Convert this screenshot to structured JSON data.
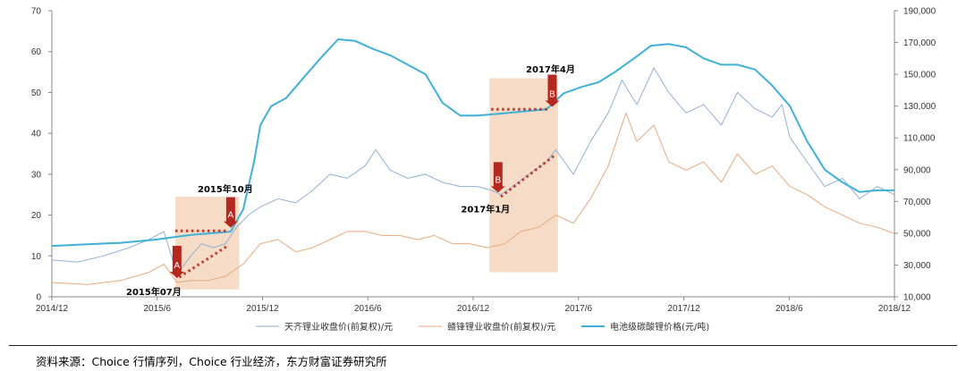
{
  "chart_data": {
    "type": "line",
    "title": "",
    "x_ticks": [
      "2014/12",
      "2015/6",
      "2015/12",
      "2016/6",
      "2016/12",
      "2017/6",
      "2017/12",
      "2018/6",
      "2018/12"
    ],
    "y_left": {
      "range": [
        0,
        70
      ],
      "ticks": [
        "0",
        "10",
        "20",
        "30",
        "40",
        "50",
        "60",
        "70"
      ]
    },
    "y_right": {
      "range": [
        10000,
        190000
      ],
      "ticks": [
        "10,000",
        "30,000",
        "50,000",
        "70,000",
        "90,000",
        "110,000",
        "130,000",
        "150,000",
        "170,000",
        "190,000"
      ]
    },
    "grid": false,
    "legend_position": "bottom-center",
    "series": [
      {
        "name": "天齐锂业收盘价(前复权)/元",
        "axis": "left",
        "color": "#8fb1d6",
        "points": [
          [
            "2014-12-01",
            9
          ],
          [
            "2015-01-15",
            8.5
          ],
          [
            "2015-03-01",
            10
          ],
          [
            "2015-04-15",
            12
          ],
          [
            "2015-05-20",
            14
          ],
          [
            "2015-06-15",
            16
          ],
          [
            "2015-07-08",
            5.5
          ],
          [
            "2015-08-01",
            10
          ],
          [
            "2015-08-20",
            13
          ],
          [
            "2015-09-10",
            12
          ],
          [
            "2015-10-01",
            13
          ],
          [
            "2015-10-20",
            17
          ],
          [
            "2015-11-10",
            20
          ],
          [
            "2015-12-01",
            22
          ],
          [
            "2016-01-01",
            24
          ],
          [
            "2016-02-01",
            23
          ],
          [
            "2016-03-01",
            26
          ],
          [
            "2016-04-01",
            30
          ],
          [
            "2016-05-01",
            29
          ],
          [
            "2016-06-01",
            32
          ],
          [
            "2016-06-20",
            36
          ],
          [
            "2016-07-15",
            31
          ],
          [
            "2016-08-15",
            29
          ],
          [
            "2016-09-15",
            30
          ],
          [
            "2016-10-15",
            28
          ],
          [
            "2016-11-15",
            27
          ],
          [
            "2016-12-15",
            27
          ],
          [
            "2017-01-10",
            26
          ],
          [
            "2017-01-25",
            25
          ],
          [
            "2017-02-15",
            27
          ],
          [
            "2017-03-15",
            30
          ],
          [
            "2017-04-15",
            33
          ],
          [
            "2017-05-01",
            36
          ],
          [
            "2017-06-01",
            30
          ],
          [
            "2017-07-01",
            38
          ],
          [
            "2017-08-01",
            45
          ],
          [
            "2017-08-25",
            53
          ],
          [
            "2017-09-20",
            47
          ],
          [
            "2017-10-20",
            56
          ],
          [
            "2017-11-15",
            50
          ],
          [
            "2017-12-15",
            45
          ],
          [
            "2018-01-15",
            47
          ],
          [
            "2018-02-15",
            42
          ],
          [
            "2018-03-15",
            50
          ],
          [
            "2018-04-15",
            46
          ],
          [
            "2018-05-15",
            44
          ],
          [
            "2018-06-01",
            47
          ],
          [
            "2018-06-15",
            39
          ],
          [
            "2018-07-15",
            33
          ],
          [
            "2018-08-15",
            27
          ],
          [
            "2018-09-15",
            29
          ],
          [
            "2018-10-15",
            24
          ],
          [
            "2018-11-15",
            27
          ],
          [
            "2018-12-15",
            25
          ]
        ]
      },
      {
        "name": "赣锋锂业收盘价(前复权)/元",
        "axis": "left",
        "color": "#e8a97e",
        "points": [
          [
            "2014-12-01",
            3.5
          ],
          [
            "2015-02-01",
            3
          ],
          [
            "2015-04-01",
            4
          ],
          [
            "2015-05-20",
            6
          ],
          [
            "2015-06-15",
            8
          ],
          [
            "2015-07-08",
            3.5
          ],
          [
            "2015-08-01",
            4
          ],
          [
            "2015-09-01",
            4
          ],
          [
            "2015-10-01",
            5
          ],
          [
            "2015-11-01",
            8
          ],
          [
            "2015-12-01",
            13
          ],
          [
            "2016-01-01",
            14
          ],
          [
            "2016-02-01",
            11
          ],
          [
            "2016-03-01",
            12
          ],
          [
            "2016-04-01",
            14
          ],
          [
            "2016-05-01",
            16
          ],
          [
            "2016-06-01",
            16
          ],
          [
            "2016-07-01",
            15
          ],
          [
            "2016-08-01",
            15
          ],
          [
            "2016-09-01",
            14
          ],
          [
            "2016-10-01",
            15
          ],
          [
            "2016-11-01",
            13
          ],
          [
            "2016-12-01",
            13
          ],
          [
            "2017-01-01",
            12
          ],
          [
            "2017-02-01",
            13
          ],
          [
            "2017-03-01",
            16
          ],
          [
            "2017-04-01",
            17
          ],
          [
            "2017-05-01",
            20
          ],
          [
            "2017-06-01",
            18
          ],
          [
            "2017-07-01",
            24
          ],
          [
            "2017-08-01",
            32
          ],
          [
            "2017-09-01",
            45
          ],
          [
            "2017-09-20",
            38
          ],
          [
            "2017-10-20",
            42
          ],
          [
            "2017-11-15",
            33
          ],
          [
            "2017-12-15",
            31
          ],
          [
            "2018-01-15",
            33
          ],
          [
            "2018-02-15",
            28
          ],
          [
            "2018-03-15",
            35
          ],
          [
            "2018-04-15",
            30
          ],
          [
            "2018-05-15",
            32
          ],
          [
            "2018-06-15",
            27
          ],
          [
            "2018-07-15",
            25
          ],
          [
            "2018-08-15",
            22
          ],
          [
            "2018-09-15",
            20
          ],
          [
            "2018-10-15",
            18
          ],
          [
            "2018-11-15",
            17
          ],
          [
            "2018-12-15",
            15.5
          ]
        ]
      },
      {
        "name": "电池级碳酸锂价格(元/吨)",
        "axis": "right",
        "color": "#3fb0d8",
        "points": [
          [
            "2014-12-01",
            42000
          ],
          [
            "2015-02-01",
            43000
          ],
          [
            "2015-04-01",
            44000
          ],
          [
            "2015-06-01",
            46000
          ],
          [
            "2015-08-01",
            49000
          ],
          [
            "2015-10-10",
            51000
          ],
          [
            "2015-11-01",
            65000
          ],
          [
            "2015-11-20",
            95000
          ],
          [
            "2015-12-01",
            118000
          ],
          [
            "2015-12-20",
            130000
          ],
          [
            "2016-01-15",
            135000
          ],
          [
            "2016-02-15",
            148000
          ],
          [
            "2016-03-15",
            160000
          ],
          [
            "2016-04-15",
            172000
          ],
          [
            "2016-05-15",
            171000
          ],
          [
            "2016-06-15",
            166000
          ],
          [
            "2016-07-15",
            162000
          ],
          [
            "2016-08-15",
            156000
          ],
          [
            "2016-09-15",
            150000
          ],
          [
            "2016-10-15",
            132000
          ],
          [
            "2016-11-15",
            124000
          ],
          [
            "2016-12-15",
            124000
          ],
          [
            "2017-01-15",
            125000
          ],
          [
            "2017-02-15",
            126000
          ],
          [
            "2017-03-15",
            127000
          ],
          [
            "2017-04-15",
            128000
          ],
          [
            "2017-05-15",
            138000
          ],
          [
            "2017-06-15",
            142000
          ],
          [
            "2017-07-15",
            145000
          ],
          [
            "2017-08-15",
            152000
          ],
          [
            "2017-09-15",
            160000
          ],
          [
            "2017-10-15",
            168000
          ],
          [
            "2017-11-15",
            169000
          ],
          [
            "2017-12-15",
            167000
          ],
          [
            "2018-01-15",
            160000
          ],
          [
            "2018-02-15",
            156000
          ],
          [
            "2018-03-15",
            156000
          ],
          [
            "2018-04-15",
            153000
          ],
          [
            "2018-05-15",
            143000
          ],
          [
            "2018-06-15",
            130000
          ],
          [
            "2018-07-15",
            108000
          ],
          [
            "2018-08-15",
            90000
          ],
          [
            "2018-09-15",
            82000
          ],
          [
            "2018-10-15",
            76000
          ],
          [
            "2018-11-15",
            77000
          ],
          [
            "2018-12-15",
            77000
          ]
        ]
      }
    ],
    "annotations": [
      {
        "label": "2015年10月",
        "date": "2015-10-10",
        "arrow_letter": "A",
        "arrow_dir": "down"
      },
      {
        "label": "2015年07月",
        "date": "2015-07-08",
        "arrow_letter": "A",
        "arrow_dir": "down"
      },
      {
        "label": "2017年4月",
        "date": "2017-04-25",
        "arrow_letter": "B",
        "arrow_dir": "down"
      },
      {
        "label": "2017年1月",
        "date": "2017-01-20",
        "arrow_letter": "B",
        "arrow_dir": "down"
      }
    ],
    "highlight_periods": [
      {
        "from": "2015-07-05",
        "to": "2015-10-25"
      },
      {
        "from": "2017-01-05",
        "to": "2017-05-05"
      }
    ]
  },
  "source_note": "资料来源：Choice 行情序列，Choice 行业经济，东方财富证券研究所",
  "colors": {
    "highlight": "#f6dcc6",
    "arrow": "#b5281f",
    "dotted_trend": "#c0392b"
  }
}
